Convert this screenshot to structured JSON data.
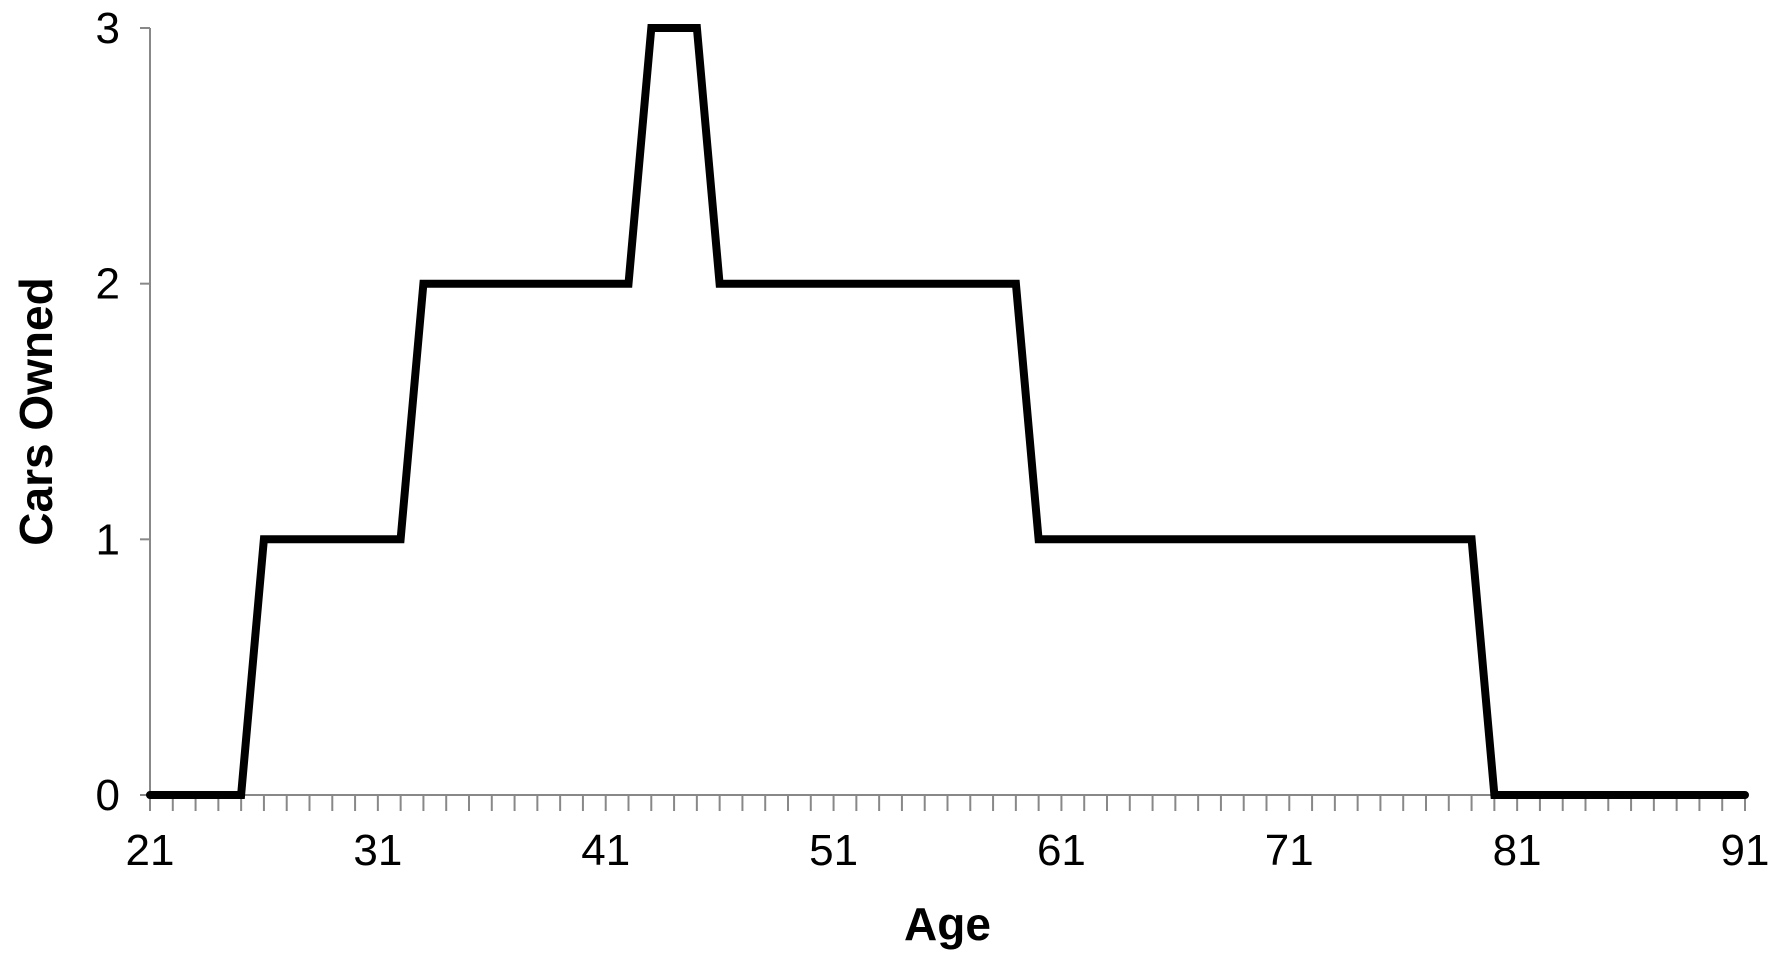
{
  "chart_data": {
    "type": "line",
    "title": "",
    "xlabel": "Age",
    "ylabel": "Cars Owned",
    "xlim": [
      21,
      91
    ],
    "ylim": [
      0,
      3
    ],
    "x_ticks": [
      21,
      31,
      41,
      51,
      61,
      71,
      81,
      91
    ],
    "y_ticks": [
      0,
      1,
      2,
      3
    ],
    "x_tick_labels": [
      "21",
      "31",
      "41",
      "51",
      "61",
      "71",
      "81",
      "91"
    ],
    "y_tick_labels": [
      "0",
      "1",
      "2",
      "3"
    ],
    "minor_x_tick_step": 1,
    "grid": false,
    "legend": "none",
    "series": [
      {
        "color": "#000000",
        "x": [
          21,
          25,
          26,
          32,
          33,
          42,
          43,
          45,
          46,
          59,
          60,
          79,
          80,
          91
        ],
        "y": [
          0,
          0,
          1,
          1,
          2,
          2,
          3,
          3,
          2,
          2,
          1,
          1,
          0,
          0
        ]
      }
    ]
  }
}
